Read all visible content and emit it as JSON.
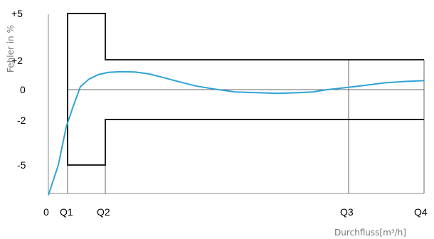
{
  "colors": {
    "curve": "#2fa3d6",
    "envelope": "#222222",
    "grid": "#666666",
    "axis": "#888888"
  },
  "chart_data": {
    "type": "line",
    "title": "",
    "xlabel": "Durchfluss[m³/h]",
    "ylabel": "Fehler in %",
    "x_ticks": [
      "0",
      "Q1",
      "Q2",
      "Q3",
      "Q4"
    ],
    "y_ticks": [
      "+5",
      "+2",
      "0",
      "-2",
      "-5"
    ],
    "grid": false,
    "series": [
      {
        "y": [
          -7,
          -5,
          -2.5,
          -1.1,
          0.2,
          0.7,
          1.0,
          1.15,
          1.2,
          1.18,
          1.05,
          0.8,
          0.55,
          0.25,
          0.05,
          -0.15,
          -0.2,
          -0.25,
          -0.2,
          -0.15,
          0.0,
          0.15,
          0.3,
          0.45,
          0.55,
          0.6
        ]
      }
    ],
    "tolerance_envelope": {
      "upper": [
        "+5 (Q1–Q2)",
        "+2 (Q2–Q4)"
      ],
      "lower": [
        "-5 (Q1–Q2)",
        "-2 (Q2–Q4)"
      ]
    }
  }
}
